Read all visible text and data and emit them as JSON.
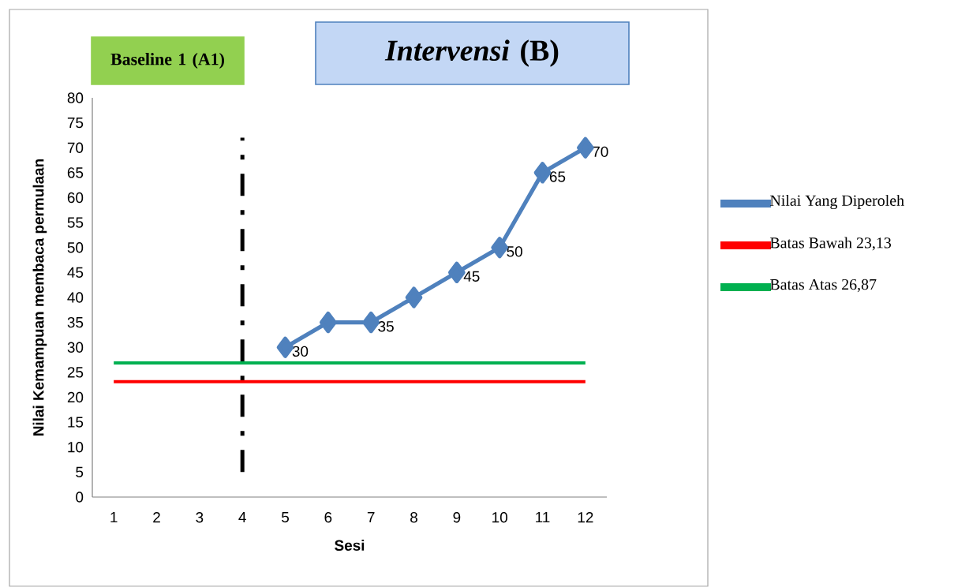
{
  "chart_data": {
    "type": "line",
    "xlabel": "Sesi",
    "ylabel": "Nilai Kemampuan membaca permulaan",
    "categories": [
      "1",
      "2",
      "3",
      "4",
      "5",
      "6",
      "7",
      "8",
      "9",
      "10",
      "11",
      "12"
    ],
    "series": [
      {
        "name": "Nilai Yang Diperoleh",
        "color": "#4f81bd",
        "marker": "diamond",
        "values": [
          null,
          null,
          null,
          null,
          30,
          35,
          35,
          40,
          45,
          50,
          65,
          70
        ],
        "value_labels": [
          null,
          null,
          null,
          null,
          "30",
          null,
          "35",
          null,
          "45",
          "50",
          "65",
          "70"
        ]
      },
      {
        "name": "Batas Bawah  23,13",
        "color": "#ff0000",
        "values": [
          23.13,
          23.13,
          23.13,
          23.13,
          23.13,
          23.13,
          23.13,
          23.13,
          23.13,
          23.13,
          23.13,
          23.13
        ]
      },
      {
        "name": "Batas Atas  26,87",
        "color": "#00b050",
        "values": [
          26.87,
          26.87,
          26.87,
          26.87,
          26.87,
          26.87,
          26.87,
          26.87,
          26.87,
          26.87,
          26.87,
          26.87
        ]
      }
    ],
    "ylim": [
      0,
      80
    ],
    "yticks": [
      0,
      5,
      10,
      15,
      20,
      25,
      30,
      35,
      40,
      45,
      50,
      55,
      60,
      65,
      70,
      75,
      80
    ],
    "ref_lines": [
      {
        "axis": "x",
        "value": "4",
        "line_style": "dashdot",
        "color": "#000000"
      }
    ],
    "annotations": [
      "**Baseline 1 (A1)**",
      "***Intervensi* (B)**"
    ],
    "legend": "right",
    "grid": false
  }
}
